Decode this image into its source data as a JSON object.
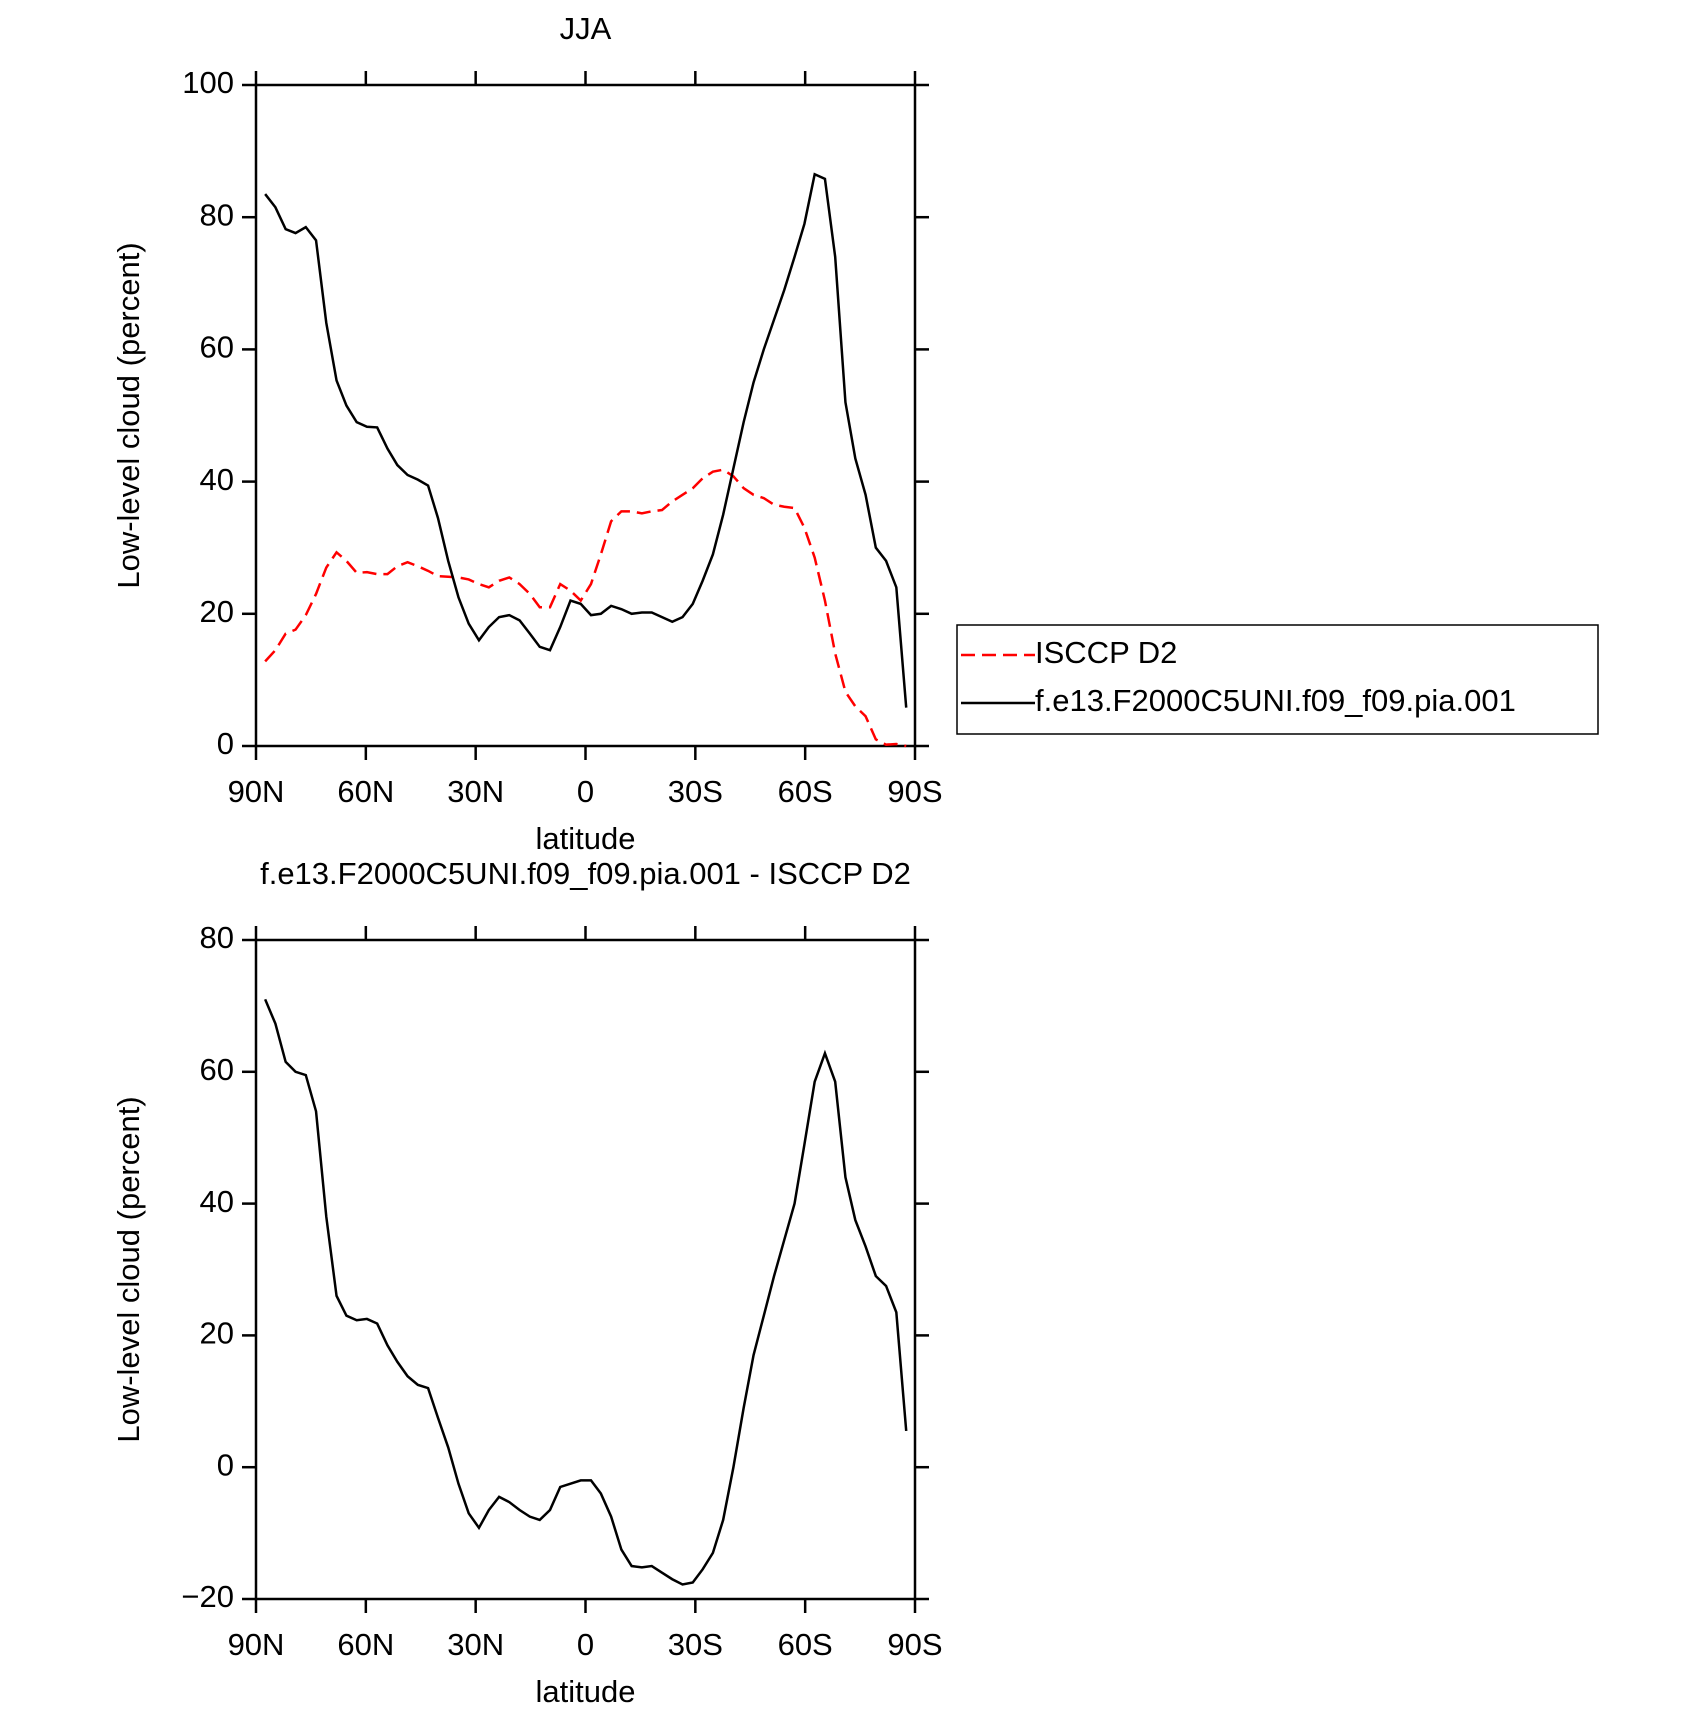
{
  "chart_data": [
    {
      "type": "line",
      "title": "JJA",
      "xlabel": "latitude",
      "ylabel": "Low-level cloud (percent)",
      "x": [
        87.5,
        84.7,
        81.9,
        79.2,
        76.4,
        73.6,
        70.8,
        68.0,
        65.3,
        62.5,
        59.7,
        56.9,
        54.1,
        51.4,
        48.6,
        45.8,
        43.0,
        40.3,
        37.5,
        34.7,
        31.9,
        29.1,
        26.4,
        23.6,
        20.8,
        18.0,
        15.2,
        12.5,
        9.7,
        6.9,
        4.1,
        1.3,
        -1.5,
        -4.2,
        -7.0,
        -9.8,
        -12.6,
        -15.4,
        -18.1,
        -20.9,
        -23.7,
        -26.5,
        -29.3,
        -32.0,
        -34.8,
        -37.6,
        -40.4,
        -43.2,
        -45.9,
        -48.7,
        -51.5,
        -54.3,
        -57.1,
        -59.8,
        -62.6,
        -65.4,
        -68.2,
        -71.0,
        -73.7,
        -76.5,
        -79.3,
        -82.1,
        -84.9,
        -87.6
      ],
      "xlim": [
        90,
        -90
      ],
      "xticks": [
        {
          "value": 90,
          "label": "90N"
        },
        {
          "value": 60,
          "label": "60N"
        },
        {
          "value": 30,
          "label": "30N"
        },
        0,
        {
          "value": -30,
          "label": "30S"
        },
        {
          "value": -60,
          "label": "60S"
        },
        {
          "value": -90,
          "label": "90S"
        }
      ],
      "ylim": [
        0,
        100
      ],
      "yticks": [
        0,
        20,
        40,
        60,
        80,
        100
      ],
      "legend": "right",
      "series": [
        {
          "name": "ISCCP D2",
          "color": "#ff0000",
          "dash": true,
          "values": [
            12.8,
            14.5,
            17,
            17.6,
            19.8,
            23,
            27,
            29.3,
            28,
            26.2,
            26.3,
            26,
            26,
            27.2,
            27.8,
            27.2,
            26.5,
            25.7,
            25.6,
            25.5,
            25.2,
            24.5,
            24,
            25,
            25.5,
            24.5,
            23,
            21,
            21,
            24.5,
            23.5,
            22,
            24.5,
            29,
            34,
            35.5,
            35.5,
            35.2,
            35.5,
            35.7,
            37,
            38,
            39,
            40.5,
            41.5,
            41.8,
            40.8,
            39,
            38,
            37.5,
            36.5,
            36.2,
            36,
            33,
            28.5,
            22,
            14,
            8.2,
            6,
            4.5,
            1,
            0.2,
            0.3,
            0
          ]
        },
        {
          "name": "f.e13.F2000C5UNI.f09_f09.pia.001",
          "color": "#000000",
          "dash": false,
          "values": [
            83.5,
            81.5,
            78.2,
            77.6,
            78.5,
            76.5,
            64,
            55.3,
            51.5,
            49,
            48.3,
            48.2,
            45,
            42.5,
            41,
            40.3,
            39.4,
            34.5,
            28,
            22.5,
            18.5,
            16,
            18,
            19.5,
            19.8,
            19,
            17,
            15,
            14.5,
            18,
            22,
            21.5,
            19.8,
            20,
            21.2,
            20.7,
            20,
            20.2,
            20.2,
            19.5,
            18.8,
            19.5,
            21.5,
            25,
            29,
            35,
            42,
            49,
            55,
            60,
            64.5,
            69,
            74,
            79,
            86.5,
            85.8,
            74,
            52,
            43.5,
            38,
            30,
            28,
            24,
            5.8
          ]
        }
      ]
    },
    {
      "type": "line",
      "title": "f.e13.F2000C5UNI.f09_f09.pia.001 - ISCCP D2",
      "xlabel": "latitude",
      "ylabel": "Low-level cloud (percent)",
      "x": [
        87.5,
        84.7,
        81.9,
        79.2,
        76.4,
        73.6,
        70.8,
        68.0,
        65.3,
        62.5,
        59.7,
        56.9,
        54.1,
        51.4,
        48.6,
        45.8,
        43.0,
        40.3,
        37.5,
        34.7,
        31.9,
        29.1,
        26.4,
        23.6,
        20.8,
        18.0,
        15.2,
        12.5,
        9.7,
        6.9,
        4.1,
        1.3,
        -1.5,
        -4.2,
        -7.0,
        -9.8,
        -12.6,
        -15.4,
        -18.1,
        -20.9,
        -23.7,
        -26.5,
        -29.3,
        -32.0,
        -34.8,
        -37.6,
        -40.4,
        -43.2,
        -45.9,
        -48.7,
        -51.5,
        -54.3,
        -57.1,
        -59.8,
        -62.6,
        -65.4,
        -68.2,
        -71.0,
        -73.7,
        -76.5,
        -79.3,
        -82.1,
        -84.9,
        -87.6
      ],
      "xlim": [
        90,
        -90
      ],
      "xticks": [
        {
          "value": 90,
          "label": "90N"
        },
        {
          "value": 60,
          "label": "60N"
        },
        {
          "value": 30,
          "label": "30N"
        },
        0,
        {
          "value": -30,
          "label": "30S"
        },
        {
          "value": -60,
          "label": "60S"
        },
        {
          "value": -90,
          "label": "90S"
        }
      ],
      "ylim": [
        -20,
        80
      ],
      "yticks": [
        {
          "value": -20,
          "label": "−20"
        },
        0,
        20,
        40,
        60,
        80
      ],
      "series": [
        {
          "color": "#000000",
          "dash": false,
          "values": [
            71,
            67.3,
            61.5,
            60,
            59.5,
            54,
            38,
            26,
            23,
            22.3,
            22.5,
            21.8,
            18.5,
            16,
            13.8,
            12.5,
            12,
            7.5,
            3,
            -2.5,
            -7,
            -9.2,
            -6.5,
            -4.5,
            -5.3,
            -6.5,
            -7.5,
            -8,
            -6.5,
            -3,
            -2.5,
            -2,
            -2,
            -4,
            -7.5,
            -12.5,
            -15,
            -15.2,
            -15,
            -16,
            -17,
            -17.8,
            -17.5,
            -15.5,
            -13,
            -8,
            0,
            9,
            17,
            23,
            29,
            34.5,
            40,
            49,
            58.5,
            62.8,
            58.5,
            44,
            37.5,
            33.5,
            29,
            27.5,
            23.5,
            5.5
          ]
        }
      ]
    }
  ]
}
